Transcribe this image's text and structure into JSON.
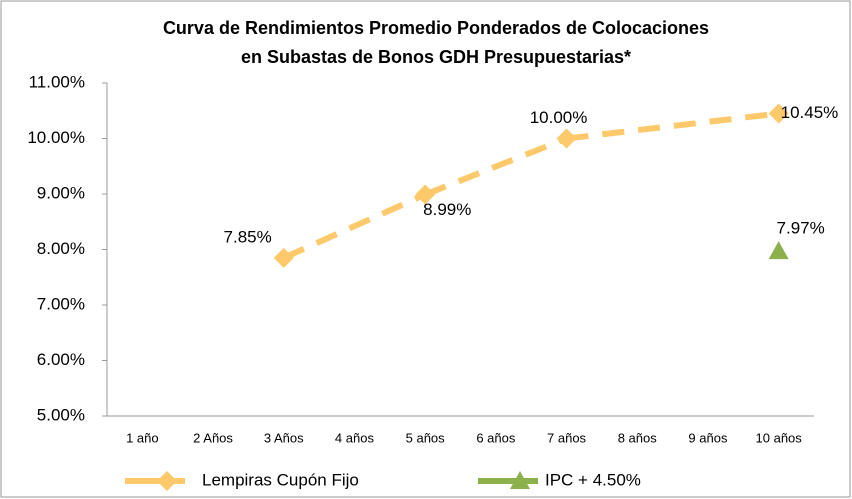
{
  "chart_data": {
    "type": "line",
    "title": [
      "Curva de Rendimientos Promedio Ponderados de Colocaciones",
      "en Subastas de Bonos GDH Presupuestarias*"
    ],
    "categories": [
      "1 año",
      "2 Años",
      "3 Años",
      "4 años",
      "5 años",
      "6 años",
      "7 años",
      "8 años",
      "9 años",
      "10 años"
    ],
    "series": [
      {
        "name": "Lempiras Cupón Fijo",
        "color": "#fdc96a",
        "marker": "diamond",
        "values": [
          null,
          null,
          7.85,
          null,
          8.99,
          null,
          10.0,
          null,
          null,
          10.45
        ],
        "value_labels": [
          null,
          null,
          "7.85%",
          null,
          "8.99%",
          null,
          "10.00%",
          null,
          null,
          "10.45%"
        ]
      },
      {
        "name": "IPC + 4.50%",
        "color": "#8cb04c",
        "marker": "triangle",
        "values": [
          null,
          null,
          null,
          null,
          null,
          null,
          null,
          null,
          null,
          7.97
        ],
        "value_labels": [
          null,
          null,
          null,
          null,
          null,
          null,
          null,
          null,
          null,
          "7.97%"
        ]
      }
    ],
    "ylim": [
      5,
      11
    ],
    "yticks": [
      {
        "value": 5,
        "label": "5.00%"
      },
      {
        "value": 6,
        "label": "6.00%"
      },
      {
        "value": 7,
        "label": "7.00%"
      },
      {
        "value": 8,
        "label": "8.00%"
      },
      {
        "value": 9,
        "label": "9.00%"
      },
      {
        "value": 10,
        "label": "10.00%"
      },
      {
        "value": 11,
        "label": "11.00%"
      }
    ],
    "grid": false
  }
}
